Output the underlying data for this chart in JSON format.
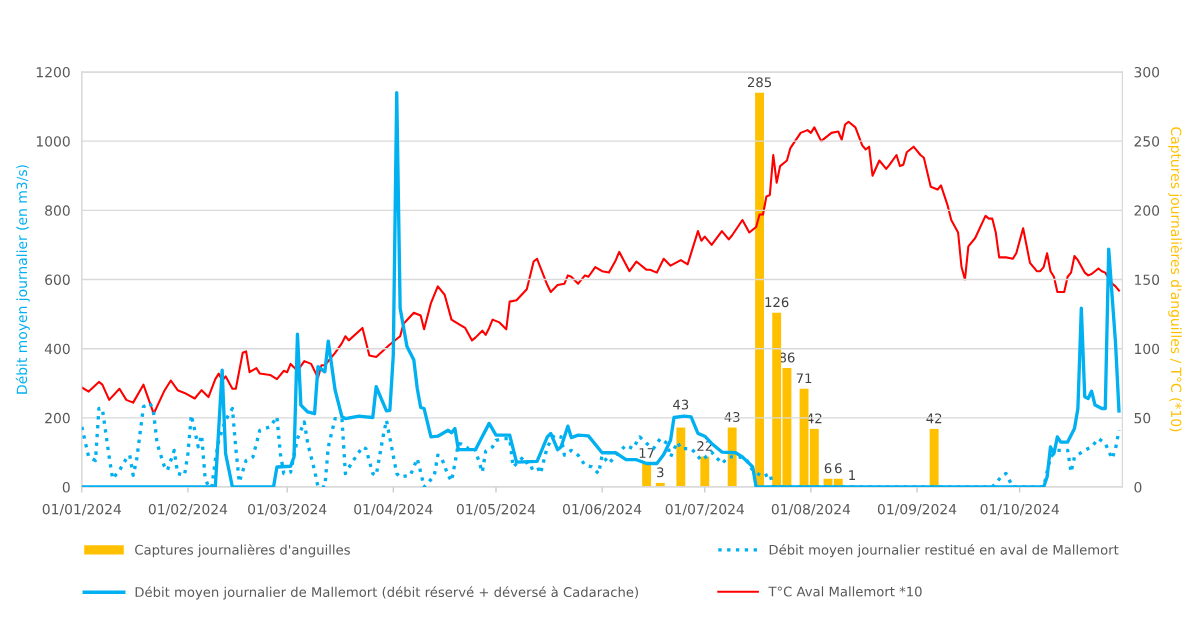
{
  "chart_data": {
    "type": "line",
    "ylabel": "Débit moyen journalier (en m3/s)",
    "y2label": "Captures journalières d'anguilles / T°C (*10)",
    "xlim": [
      "2024-01-01",
      "2024-10-31"
    ],
    "xticks": [
      {
        "value": "2024-01-01",
        "label": "01/01/2024"
      },
      {
        "value": "2024-02-01",
        "label": "01/02/2024"
      },
      {
        "value": "2024-03-01",
        "label": "01/03/2024"
      },
      {
        "value": "2024-04-01",
        "label": "01/04/2024"
      },
      {
        "value": "2024-05-01",
        "label": "01/05/2024"
      },
      {
        "value": "2024-06-01",
        "label": "01/06/2024"
      },
      {
        "value": "2024-07-01",
        "label": "01/07/2024"
      },
      {
        "value": "2024-08-01",
        "label": "01/08/2024"
      },
      {
        "value": "2024-09-01",
        "label": "01/09/2024"
      },
      {
        "value": "2024-10-01",
        "label": "01/10/2024"
      }
    ],
    "ylim": [
      0,
      1200
    ],
    "yticks": [
      0,
      200,
      400,
      600,
      800,
      1000,
      1200
    ],
    "y2lim": [
      0,
      300
    ],
    "y2ticks": [
      0,
      50,
      100,
      150,
      200,
      250,
      300
    ],
    "grid": "y",
    "legend": "bottom",
    "series": [
      {
        "name": "Captures journalières d'anguilles",
        "type": "bar",
        "axis": "y2",
        "color": "#ffc000",
        "x": [
          "2024-06-14",
          "2024-06-18",
          "2024-06-24",
          "2024-07-01",
          "2024-07-09",
          "2024-07-17",
          "2024-07-22",
          "2024-07-25",
          "2024-07-30",
          "2024-08-02",
          "2024-08-06",
          "2024-08-09",
          "2024-08-13",
          "2024-09-06"
        ],
        "values": [
          17,
          3,
          43,
          22,
          43,
          285,
          126,
          86,
          71,
          42,
          6,
          6,
          1,
          42
        ],
        "value_labels": [
          "17",
          "3",
          "43",
          "22",
          "43",
          "285",
          "126",
          "86",
          "71",
          "42",
          "6",
          "6",
          "1",
          "42"
        ]
      },
      {
        "name": "Débit moyen journalier restitué en aval de Mallemort",
        "axis": "y",
        "color": "#00b0f0",
        "line_style": "dotted",
        "x": [
          "2024-01-01",
          "2024-01-03",
          "2024-01-05",
          "2024-01-06",
          "2024-01-07",
          "2024-01-09",
          "2024-01-10",
          "2024-01-12",
          "2024-01-14",
          "2024-01-15",
          "2024-01-16",
          "2024-01-17",
          "2024-01-19",
          "2024-01-21",
          "2024-01-22",
          "2024-01-23",
          "2024-01-25",
          "2024-01-26",
          "2024-01-28",
          "2024-01-29",
          "2024-01-31",
          "2024-02-01",
          "2024-02-02",
          "2024-02-03",
          "2024-02-04",
          "2024-02-05",
          "2024-02-06",
          "2024-02-07",
          "2024-02-08",
          "2024-02-09",
          "2024-02-10",
          "2024-02-12",
          "2024-02-14",
          "2024-02-15",
          "2024-02-16",
          "2024-02-18",
          "2024-02-20",
          "2024-02-22",
          "2024-02-25",
          "2024-02-27",
          "2024-02-28",
          "2024-02-29",
          "2024-03-02",
          "2024-03-04",
          "2024-03-06",
          "2024-03-07",
          "2024-03-09",
          "2024-03-10",
          "2024-03-12",
          "2024-03-13",
          "2024-03-15",
          "2024-03-17",
          "2024-03-18",
          "2024-03-20",
          "2024-03-23",
          "2024-03-24",
          "2024-03-26",
          "2024-03-27",
          "2024-03-29",
          "2024-03-30",
          "2024-04-02",
          "2024-04-03",
          "2024-04-06",
          "2024-04-08",
          "2024-04-09",
          "2024-04-10",
          "2024-04-11",
          "2024-04-13",
          "2024-04-14",
          "2024-04-15",
          "2024-04-17",
          "2024-04-18",
          "2024-04-19",
          "2024-04-20",
          "2024-04-21",
          "2024-04-23",
          "2024-04-24",
          "2024-04-25",
          "2024-04-27",
          "2024-04-28",
          "2024-04-30",
          "2024-05-01",
          "2024-05-03",
          "2024-05-05",
          "2024-05-06",
          "2024-05-09",
          "2024-05-11",
          "2024-05-13",
          "2024-05-14",
          "2024-05-16",
          "2024-05-18",
          "2024-05-20",
          "2024-05-21",
          "2024-05-23",
          "2024-05-25",
          "2024-05-27",
          "2024-05-29",
          "2024-05-31",
          "2024-06-01",
          "2024-06-03",
          "2024-06-05",
          "2024-06-08",
          "2024-06-10",
          "2024-06-12",
          "2024-06-14",
          "2024-06-16",
          "2024-06-18",
          "2024-06-20",
          "2024-06-21",
          "2024-06-23",
          "2024-06-24",
          "2024-06-27",
          "2024-06-28",
          "2024-06-30",
          "2024-07-02",
          "2024-07-03",
          "2024-07-06",
          "2024-07-08",
          "2024-07-11",
          "2024-07-13",
          "2024-07-15",
          "2024-07-18",
          "2024-07-20",
          "2024-07-21",
          "2024-09-23",
          "2024-09-26",
          "2024-09-27",
          "2024-09-29",
          "2024-10-08",
          "2024-10-10",
          "2024-10-12",
          "2024-10-15",
          "2024-10-16",
          "2024-10-17",
          "2024-10-20",
          "2024-10-22",
          "2024-10-24",
          "2024-10-26",
          "2024-10-28",
          "2024-10-29",
          "2024-10-30"
        ],
        "values": [
          174,
          87,
          77,
          227,
          227,
          87,
          24,
          48,
          82,
          92,
          34,
          77,
          232,
          242,
          213,
          126,
          63,
          48,
          106,
          39,
          34,
          97,
          208,
          164,
          116,
          150,
          29,
          0,
          0,
          77,
          135,
          193,
          227,
          111,
          14,
          77,
          87,
          164,
          174,
          203,
          97,
          39,
          43,
          140,
          188,
          126,
          48,
          0,
          0,
          116,
          198,
          198,
          39,
          72,
          116,
          111,
          39,
          34,
          145,
          193,
          39,
          29,
          34,
          82,
          43,
          0,
          10,
          34,
          92,
          87,
          34,
          17,
          68,
          126,
          124,
          111,
          116,
          106,
          43,
          104,
          116,
          135,
          140,
          140,
          58,
          87,
          53,
          60,
          39,
          116,
          150,
          145,
          92,
          106,
          92,
          63,
          58,
          39,
          92,
          68,
          92,
          121,
          111,
          145,
          126,
          111,
          140,
          126,
          87,
          130,
          111,
          111,
          101,
          77,
          92,
          101,
          68,
          87,
          87,
          82,
          48,
          29,
          39,
          0,
          0,
          34,
          39,
          0,
          0,
          87,
          106,
          106,
          43,
          87,
          106,
          116,
          140,
          126,
          82,
          111,
          164
        ]
      },
      {
        "name": "Débit moyen journalier de Mallemort (débit réservé + déversé à Cadarache)",
        "axis": "y",
        "color": "#00b0f0",
        "line_style": "solid",
        "x": [
          "2024-01-01",
          "2024-02-09",
          "2024-02-11",
          "2024-02-12",
          "2024-02-14",
          "2024-02-26",
          "2024-02-27",
          "2024-03-02",
          "2024-03-03",
          "2024-03-04",
          "2024-03-05",
          "2024-03-07",
          "2024-03-09",
          "2024-03-10",
          "2024-03-12",
          "2024-03-13",
          "2024-03-15",
          "2024-03-17",
          "2024-03-18",
          "2024-03-22",
          "2024-03-24",
          "2024-03-26",
          "2024-03-27",
          "2024-03-30",
          "2024-03-31",
          "2024-04-01",
          "2024-04-02",
          "2024-04-03",
          "2024-04-05",
          "2024-04-07",
          "2024-04-08",
          "2024-04-09",
          "2024-04-10",
          "2024-04-12",
          "2024-04-14",
          "2024-04-17",
          "2024-04-18",
          "2024-04-19",
          "2024-04-20",
          "2024-04-25",
          "2024-04-29",
          "2024-05-01",
          "2024-05-05",
          "2024-05-07",
          "2024-05-13",
          "2024-05-16",
          "2024-05-17",
          "2024-05-19",
          "2024-05-20",
          "2024-05-22",
          "2024-05-23",
          "2024-05-25",
          "2024-05-28",
          "2024-06-01",
          "2024-06-05",
          "2024-06-08",
          "2024-06-11",
          "2024-06-14",
          "2024-06-17",
          "2024-06-19",
          "2024-06-21",
          "2024-06-22",
          "2024-06-25",
          "2024-06-27",
          "2024-06-29",
          "2024-07-01",
          "2024-07-03",
          "2024-07-06",
          "2024-07-10",
          "2024-07-12",
          "2024-07-14",
          "2024-07-15",
          "2024-07-16",
          "2024-10-08",
          "2024-10-09",
          "2024-10-10",
          "2024-10-11",
          "2024-10-12",
          "2024-10-13",
          "2024-10-15",
          "2024-10-17",
          "2024-10-18",
          "2024-10-19",
          "2024-10-20",
          "2024-10-21",
          "2024-10-22",
          "2024-10-23",
          "2024-10-25",
          "2024-10-26",
          "2024-10-27",
          "2024-10-29",
          "2024-10-30"
        ],
        "values": [
          0,
          0,
          338,
          97,
          0,
          0,
          58,
          60,
          87,
          442,
          237,
          217,
          212,
          348,
          333,
          422,
          280,
          203,
          198,
          205,
          203,
          201,
          290,
          220,
          222,
          382,
          1140,
          517,
          406,
          367,
          285,
          230,
          227,
          145,
          147,
          164,
          157,
          169,
          108,
          108,
          184,
          150,
          150,
          72,
          74,
          145,
          155,
          108,
          116,
          176,
          143,
          150,
          148,
          99,
          99,
          79,
          79,
          68,
          68,
          94,
          135,
          201,
          205,
          203,
          155,
          147,
          126,
          101,
          99,
          87,
          68,
          58,
          0,
          0,
          29,
          116,
          97,
          145,
          130,
          130,
          169,
          227,
          517,
          261,
          256,
          277,
          237,
          227,
          227,
          688,
          415,
          220
        ]
      },
      {
        "name": "T°C Aval Mallemort *10",
        "axis": "y2",
        "color": "#ff0000",
        "line_style": "solid",
        "x": [
          "2024-01-01",
          "2024-01-03",
          "2024-01-06",
          "2024-01-07",
          "2024-01-09",
          "2024-01-12",
          "2024-01-14",
          "2024-01-16",
          "2024-01-19",
          "2024-01-22",
          "2024-01-25",
          "2024-01-27",
          "2024-01-29",
          "2024-01-31",
          "2024-02-03",
          "2024-02-05",
          "2024-02-07",
          "2024-02-09",
          "2024-02-10",
          "2024-02-11",
          "2024-02-12",
          "2024-02-14",
          "2024-02-15",
          "2024-02-17",
          "2024-02-18",
          "2024-02-19",
          "2024-02-21",
          "2024-02-22",
          "2024-02-25",
          "2024-02-27",
          "2024-02-29",
          "2024-03-01",
          "2024-03-02",
          "2024-03-04",
          "2024-03-06",
          "2024-03-08",
          "2024-03-10",
          "2024-03-11",
          "2024-03-12",
          "2024-03-15",
          "2024-03-17",
          "2024-03-18",
          "2024-03-19",
          "2024-03-23",
          "2024-03-25",
          "2024-03-27",
          "2024-03-31",
          "2024-04-03",
          "2024-04-04",
          "2024-04-07",
          "2024-04-09",
          "2024-04-10",
          "2024-04-12",
          "2024-04-14",
          "2024-04-16",
          "2024-04-18",
          "2024-04-20",
          "2024-04-22",
          "2024-04-24",
          "2024-04-25",
          "2024-04-27",
          "2024-04-28",
          "2024-04-29",
          "2024-04-30",
          "2024-05-02",
          "2024-05-04",
          "2024-05-05",
          "2024-05-07",
          "2024-05-10",
          "2024-05-12",
          "2024-05-13",
          "2024-05-16",
          "2024-05-17",
          "2024-05-19",
          "2024-05-21",
          "2024-05-22",
          "2024-05-23",
          "2024-05-25",
          "2024-05-27",
          "2024-05-28",
          "2024-05-30",
          "2024-06-01",
          "2024-06-03",
          "2024-06-05",
          "2024-06-06",
          "2024-06-09",
          "2024-06-11",
          "2024-06-14",
          "2024-06-15",
          "2024-06-17",
          "2024-06-19",
          "2024-06-21",
          "2024-06-24",
          "2024-06-26",
          "2024-06-29",
          "2024-06-30",
          "2024-07-01",
          "2024-07-03",
          "2024-07-06",
          "2024-07-08",
          "2024-07-09",
          "2024-07-12",
          "2024-07-14",
          "2024-07-16",
          "2024-07-17",
          "2024-07-18",
          "2024-07-19",
          "2024-07-20",
          "2024-07-21",
          "2024-07-22",
          "2024-07-23",
          "2024-07-25",
          "2024-07-26",
          "2024-07-29",
          "2024-07-31",
          "2024-08-01",
          "2024-08-02",
          "2024-08-04",
          "2024-08-07",
          "2024-08-09",
          "2024-08-10",
          "2024-08-11",
          "2024-08-12",
          "2024-08-14",
          "2024-08-16",
          "2024-08-17",
          "2024-08-18",
          "2024-08-19",
          "2024-08-21",
          "2024-08-23",
          "2024-08-24",
          "2024-08-26",
          "2024-08-27",
          "2024-08-28",
          "2024-08-29",
          "2024-08-31",
          "2024-09-02",
          "2024-09-03",
          "2024-09-05",
          "2024-09-07",
          "2024-09-08",
          "2024-09-10",
          "2024-09-11",
          "2024-09-13",
          "2024-09-14",
          "2024-09-15",
          "2024-09-16",
          "2024-09-18",
          "2024-09-21",
          "2024-09-22",
          "2024-09-23",
          "2024-09-24",
          "2024-09-25",
          "2024-09-27",
          "2024-09-29",
          "2024-09-30",
          "2024-10-02",
          "2024-10-04",
          "2024-10-06",
          "2024-10-07",
          "2024-10-08",
          "2024-10-09",
          "2024-10-10",
          "2024-10-11",
          "2024-10-12",
          "2024-10-14",
          "2024-10-15",
          "2024-10-16",
          "2024-10-17",
          "2024-10-18",
          "2024-10-20",
          "2024-10-21",
          "2024-10-22",
          "2024-10-24",
          "2024-10-25",
          "2024-10-26",
          "2024-10-28",
          "2024-10-29",
          "2024-10-30"
        ],
        "values": [
          72,
          69,
          76,
          74,
          63,
          71,
          63,
          61,
          74,
          53,
          69,
          77,
          70,
          68,
          64,
          70,
          65,
          78,
          82,
          77,
          80,
          71,
          71,
          97,
          98,
          83,
          86,
          82,
          81,
          78,
          84,
          83,
          89,
          84,
          91,
          89,
          79,
          88,
          88,
          97,
          104,
          109,
          106,
          115,
          95,
          94,
          103,
          109,
          118,
          126,
          124,
          114,
          133,
          145,
          139,
          121,
          118,
          115,
          106,
          108,
          113,
          110,
          115,
          121,
          119,
          114,
          134,
          135,
          143,
          163,
          165,
          146,
          141,
          146,
          147,
          153,
          152,
          147,
          153,
          152,
          159,
          156,
          155,
          164,
          170,
          156,
          163,
          157,
          157,
          155,
          165,
          160,
          164,
          161,
          185,
          178,
          181,
          175,
          185,
          179,
          182,
          193,
          184,
          188,
          197,
          197,
          210,
          211,
          240,
          220,
          232,
          236,
          245,
          256,
          258,
          256,
          260,
          250,
          256,
          257,
          251,
          262,
          264,
          260,
          247,
          244,
          246,
          225,
          236,
          230,
          233,
          240,
          232,
          233,
          242,
          246,
          240,
          238,
          217,
          215,
          218,
          203,
          193,
          184,
          159,
          150,
          174,
          180,
          196,
          194,
          194,
          184,
          166,
          166,
          165,
          169,
          187,
          162,
          156,
          156,
          159,
          169,
          156,
          152,
          141,
          141,
          152,
          155,
          167,
          164,
          155,
          153,
          154,
          158,
          156,
          155,
          147,
          145,
          142
        ]
      }
    ]
  }
}
